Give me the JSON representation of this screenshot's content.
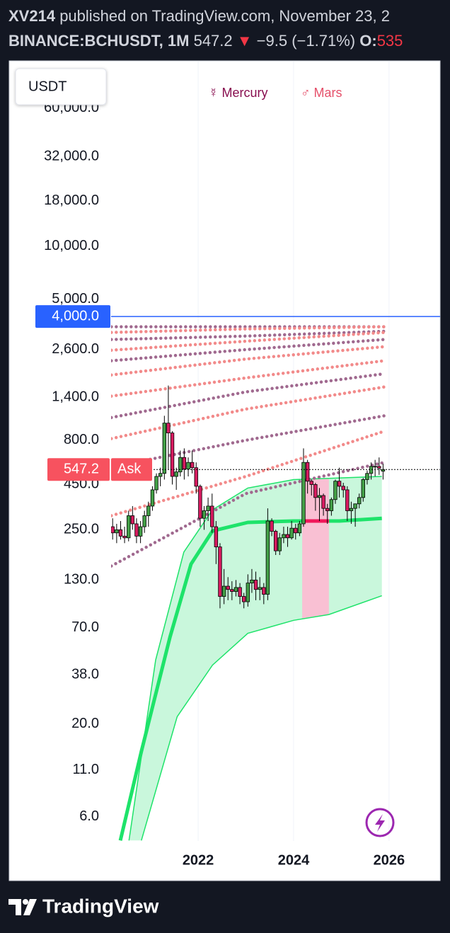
{
  "header": {
    "author": "XV214",
    "published": "published on TradingView.com, November 23, 2",
    "symbol": "BINANCE:BCHUSDT, 1M",
    "change": "−9.5 (−1.71%)",
    "open_label": "O:"
  },
  "footer": {
    "brand": "TradingView"
  },
  "chart_data": {
    "type": "candlestick",
    "currency": "USDT",
    "ask_label": "Ask",
    "log_scale": true,
    "grid": true,
    "xlim": [
      2018.04,
      2027.07
    ],
    "xticks": [
      2022,
      2024,
      2026
    ],
    "ylim": [
      4.37,
      110000
    ],
    "yticks": [
      {
        "value": 6,
        "label": "6.0"
      },
      {
        "value": 11,
        "label": "11.0"
      },
      {
        "value": 20,
        "label": "20.0"
      },
      {
        "value": 38,
        "label": "38.0"
      },
      {
        "value": 70,
        "label": "70.0"
      },
      {
        "value": 130,
        "label": "130.0"
      },
      {
        "value": 250,
        "label": "250.0"
      },
      {
        "value": 450,
        "label": "450.0"
      },
      {
        "value": 800,
        "label": "800.0"
      },
      {
        "value": 1400,
        "label": "1,400.0"
      },
      {
        "value": 2600,
        "label": "2,600.0"
      },
      {
        "value": 5000,
        "label": "5,000.0"
      },
      {
        "value": 10000,
        "label": "10,000.0"
      },
      {
        "value": 18000,
        "label": "18,000.0"
      },
      {
        "value": 32000,
        "label": "32,000.0"
      },
      {
        "value": 60000,
        "label": "60,000.0"
      }
    ],
    "alert_level": {
      "value": 4000,
      "label": "4,000.0",
      "color": "#2962ff"
    },
    "color_up": "#43a047",
    "color_down": "#d81b60",
    "x": [
      2020.208,
      2020.292,
      2020.375,
      2020.458,
      2020.542,
      2020.625,
      2020.708,
      2020.792,
      2020.875,
      2020.958,
      2021.042,
      2021.125,
      2021.208,
      2021.292,
      2021.375,
      2021.458,
      2021.542,
      2021.625,
      2021.708,
      2021.792,
      2021.875,
      2021.958,
      2022.042,
      2022.125,
      2022.208,
      2022.292,
      2022.375,
      2022.458,
      2022.542,
      2022.625,
      2022.708,
      2022.792,
      2022.875,
      2022.958,
      2023.042,
      2023.125,
      2023.208,
      2023.292,
      2023.375,
      2023.458,
      2023.542,
      2023.625,
      2023.708,
      2023.792,
      2023.875,
      2023.958,
      2024.042,
      2024.125,
      2024.208,
      2024.292,
      2024.375,
      2024.458,
      2024.542,
      2024.625,
      2024.708,
      2024.792,
      2024.875,
      2024.958,
      2025.042,
      2025.125,
      2025.208,
      2025.292,
      2025.375,
      2025.458,
      2025.542,
      2025.625,
      2025.708,
      2025.792,
      2025.875
    ],
    "open": [
      260,
      240,
      250,
      230,
      225,
      300,
      270,
      230,
      260,
      300,
      340,
      420,
      500,
      520,
      1000,
      880,
      500,
      530,
      640,
      550,
      600,
      560,
      440,
      290,
      320,
      340,
      260,
      200,
      105,
      120,
      115,
      112,
      118,
      105,
      98,
      125,
      130,
      115,
      118,
      108,
      280,
      245,
      190,
      225,
      235,
      225,
      255,
      240,
      270,
      600,
      470,
      450,
      380,
      390,
      330,
      320,
      370,
      470,
      440,
      420,
      320,
      330,
      350,
      380,
      480,
      520,
      570,
      570,
      535
    ],
    "high": [
      290,
      270,
      280,
      260,
      320,
      340,
      290,
      280,
      320,
      360,
      440,
      520,
      560,
      1100,
      1630,
      900,
      560,
      700,
      720,
      640,
      700,
      600,
      450,
      340,
      380,
      400,
      280,
      210,
      150,
      135,
      128,
      130,
      125,
      110,
      140,
      150,
      145,
      135,
      125,
      330,
      290,
      250,
      240,
      260,
      260,
      280,
      270,
      280,
      720,
      620,
      480,
      460,
      430,
      400,
      350,
      380,
      480,
      560,
      460,
      440,
      360,
      350,
      400,
      490,
      540,
      600,
      620,
      640,
      590
    ],
    "low": [
      220,
      210,
      220,
      210,
      215,
      250,
      210,
      210,
      240,
      260,
      320,
      400,
      440,
      480,
      550,
      450,
      420,
      500,
      480,
      500,
      520,
      400,
      260,
      250,
      280,
      240,
      160,
      90,
      95,
      100,
      100,
      105,
      95,
      90,
      92,
      110,
      100,
      100,
      95,
      100,
      230,
      180,
      180,
      210,
      200,
      220,
      220,
      230,
      260,
      400,
      390,
      320,
      280,
      300,
      270,
      300,
      350,
      380,
      380,
      280,
      270,
      260,
      330,
      360,
      450,
      480,
      500,
      510,
      480
    ],
    "close": [
      240,
      250,
      230,
      225,
      300,
      270,
      230,
      260,
      300,
      340,
      420,
      500,
      520,
      1000,
      880,
      500,
      530,
      640,
      550,
      600,
      560,
      440,
      290,
      320,
      340,
      260,
      200,
      105,
      120,
      115,
      112,
      118,
      105,
      98,
      125,
      130,
      115,
      118,
      108,
      280,
      245,
      190,
      225,
      235,
      225,
      255,
      240,
      270,
      600,
      470,
      450,
      380,
      390,
      330,
      320,
      370,
      470,
      440,
      420,
      320,
      330,
      350,
      380,
      480,
      520,
      570,
      570,
      556.7,
      547.2
    ],
    "model": {
      "line_color": "#1ee36a",
      "fill": "#c9f7dc",
      "median": {
        "x": [
          2020.37,
          2020.81,
          2021.41,
          2021.85,
          2022.3,
          2023.04,
          2024.0,
          2024.96,
          2025.85
        ],
        "values": [
          4.4,
          14,
          62,
          160,
          246,
          275,
          280,
          280,
          290
        ]
      },
      "upper": {
        "x": [
          2020.55,
          2021.11,
          2021.7,
          2022.3,
          2023.04,
          2024.0,
          2025.85
        ],
        "values": [
          4.4,
          46,
          187,
          324,
          430,
          480,
          500
        ]
      },
      "lower": {
        "x": [
          2020.81,
          2021.56,
          2022.3,
          2023.04,
          2024.0,
          2024.74,
          2025.85
        ],
        "values": [
          4.4,
          22,
          43,
          65,
          77,
          83,
          106
        ]
      }
    },
    "highlight": {
      "x": [
        2024.18,
        2024.74
      ],
      "fill": "#f9c0d3",
      "line_color": "#f0185a"
    },
    "series": [
      {
        "name": "Mercury",
        "symbol": "☿",
        "color": "#a0698f",
        "x": [
          2020.18,
          2023.0,
          2025.9
        ],
        "lines": [
          [
            3500,
            3500,
            3500
          ],
          [
            2965,
            3100,
            3300
          ],
          [
            2250,
            2600,
            2965
          ],
          [
            1075,
            1500,
            1900
          ],
          [
            565,
            800,
            1100
          ],
          [
            156,
            400,
            600
          ]
        ]
      },
      {
        "name": "Mars",
        "symbol": "♂",
        "color": "#f28a8a",
        "x": [
          2020.18,
          2023.0,
          2025.9
        ],
        "lines": [
          [
            3250,
            3400,
            3500
          ],
          [
            2580,
            2900,
            3250
          ],
          [
            1870,
            2300,
            2700
          ],
          [
            1420,
            1800,
            2250
          ],
          [
            817,
            1200,
            1600
          ],
          [
            300,
            500,
            900
          ]
        ]
      }
    ]
  }
}
